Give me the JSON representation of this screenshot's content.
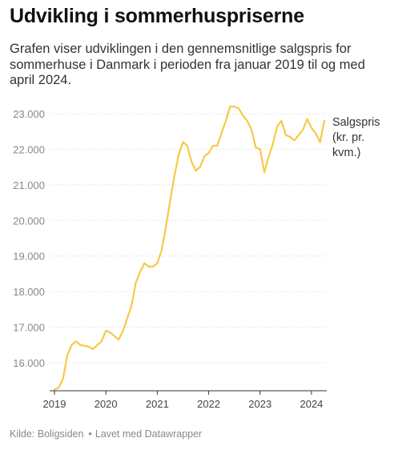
{
  "title": "Udvikling i sommerhuspriserne",
  "subtitle": "Grafen viser udviklingen i den gennemsnitlige salgspris for sommerhuse i Danmark i perioden fra januar 2019 til og med april 2024.",
  "footer": {
    "source": "Kilde: Boligsiden",
    "separator": "•",
    "made_with": "Lavet med Datawrapper"
  },
  "colors": {
    "line": "#f7c948",
    "grid": "#dddddd",
    "tick_text": "#888888",
    "label_text": "#333333"
  },
  "chart_data": {
    "type": "line",
    "title": "",
    "xlabel": "",
    "ylabel": "",
    "xlim": [
      "2019-01",
      "2024-05"
    ],
    "ylim": [
      15200,
      23300
    ],
    "y_ticks": [
      {
        "value": 16000,
        "label": "16.000"
      },
      {
        "value": 17000,
        "label": "17.000"
      },
      {
        "value": 18000,
        "label": "18.000"
      },
      {
        "value": 19000,
        "label": "19.000"
      },
      {
        "value": 20000,
        "label": "20.000"
      },
      {
        "value": 21000,
        "label": "21.000"
      },
      {
        "value": 22000,
        "label": "22.000"
      },
      {
        "value": 23000,
        "label": "23.000"
      }
    ],
    "x_ticks": [
      {
        "value": "2019-01",
        "label": "2019"
      },
      {
        "value": "2020-01",
        "label": "2020"
      },
      {
        "value": "2021-01",
        "label": "2021"
      },
      {
        "value": "2022-01",
        "label": "2022"
      },
      {
        "value": "2023-01",
        "label": "2023"
      },
      {
        "value": "2024-01",
        "label": "2024"
      }
    ],
    "grid": true,
    "legend": "line-end label, right",
    "series": [
      {
        "name": "Salgspris (kr. pr. kvm.)",
        "label_lines": [
          "Salgspris",
          "(kr. pr.",
          "kvm.)"
        ],
        "x": [
          "2019-01",
          "2019-02",
          "2019-03",
          "2019-04",
          "2019-05",
          "2019-06",
          "2019-07",
          "2019-08",
          "2019-09",
          "2019-10",
          "2019-11",
          "2019-12",
          "2020-01",
          "2020-02",
          "2020-03",
          "2020-04",
          "2020-05",
          "2020-06",
          "2020-07",
          "2020-08",
          "2020-09",
          "2020-10",
          "2020-11",
          "2020-12",
          "2021-01",
          "2021-02",
          "2021-03",
          "2021-04",
          "2021-05",
          "2021-06",
          "2021-07",
          "2021-08",
          "2021-09",
          "2021-10",
          "2021-11",
          "2021-12",
          "2022-01",
          "2022-02",
          "2022-03",
          "2022-04",
          "2022-05",
          "2022-06",
          "2022-07",
          "2022-08",
          "2022-09",
          "2022-10",
          "2022-11",
          "2022-12",
          "2023-01",
          "2023-02",
          "2023-03",
          "2023-04",
          "2023-05",
          "2023-06",
          "2023-07",
          "2023-08",
          "2023-09",
          "2023-10",
          "2023-11",
          "2023-12",
          "2024-01",
          "2024-02",
          "2024-03",
          "2024-04"
        ],
        "values": [
          15250,
          15300,
          15550,
          16200,
          16500,
          16600,
          16500,
          16480,
          16450,
          16380,
          16500,
          16600,
          16900,
          16850,
          16750,
          16650,
          16900,
          17250,
          17600,
          18250,
          18550,
          18800,
          18700,
          18700,
          18800,
          19150,
          19800,
          20550,
          21250,
          21850,
          22200,
          22100,
          21650,
          21400,
          21500,
          21800,
          21900,
          22100,
          22100,
          22450,
          22800,
          23200,
          23200,
          23150,
          22950,
          22800,
          22550,
          22050,
          22000,
          21350,
          21800,
          22150,
          22650,
          22800,
          22400,
          22350,
          22250,
          22400,
          22550,
          22850,
          22600,
          22450,
          22200,
          22800
        ]
      }
    ]
  }
}
